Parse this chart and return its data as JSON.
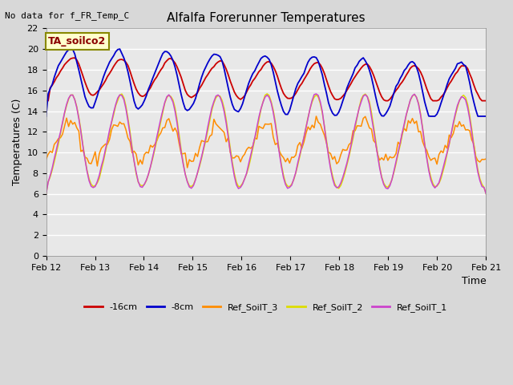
{
  "title": "Alfalfa Forerunner Temperatures",
  "ylabel": "Temperatures (C)",
  "xlabel": "Time",
  "top_left_text": "No data for f_FR_Temp_C",
  "annotation_box": "TA_soilco2",
  "ylim": [
    0,
    22
  ],
  "yticks": [
    0,
    2,
    4,
    6,
    8,
    10,
    12,
    14,
    16,
    18,
    20,
    22
  ],
  "xtick_labels": [
    "Feb 12",
    "Feb 13",
    "Feb 14",
    "Feb 15",
    "Feb 16",
    "Feb 17",
    "Feb 18",
    "Feb 19",
    "Feb 20",
    "Feb 21"
  ],
  "series": {
    "red_16cm": {
      "label": "-16cm",
      "color": "#cc0000",
      "lw": 1.3
    },
    "blue_8cm": {
      "label": "-8cm",
      "color": "#0000cc",
      "lw": 1.3
    },
    "orange_ref3": {
      "label": "Ref_SoilT_3",
      "color": "#ff8c00",
      "lw": 1.1
    },
    "yellow_ref2": {
      "label": "Ref_SoilT_2",
      "color": "#dddd00",
      "lw": 1.1
    },
    "purple_ref1": {
      "label": "Ref_SoilT_1",
      "color": "#cc44cc",
      "lw": 1.1
    }
  },
  "bg_color": "#d8d8d8",
  "plot_bg_color": "#e8e8e8",
  "grid_color": "#ffffff"
}
